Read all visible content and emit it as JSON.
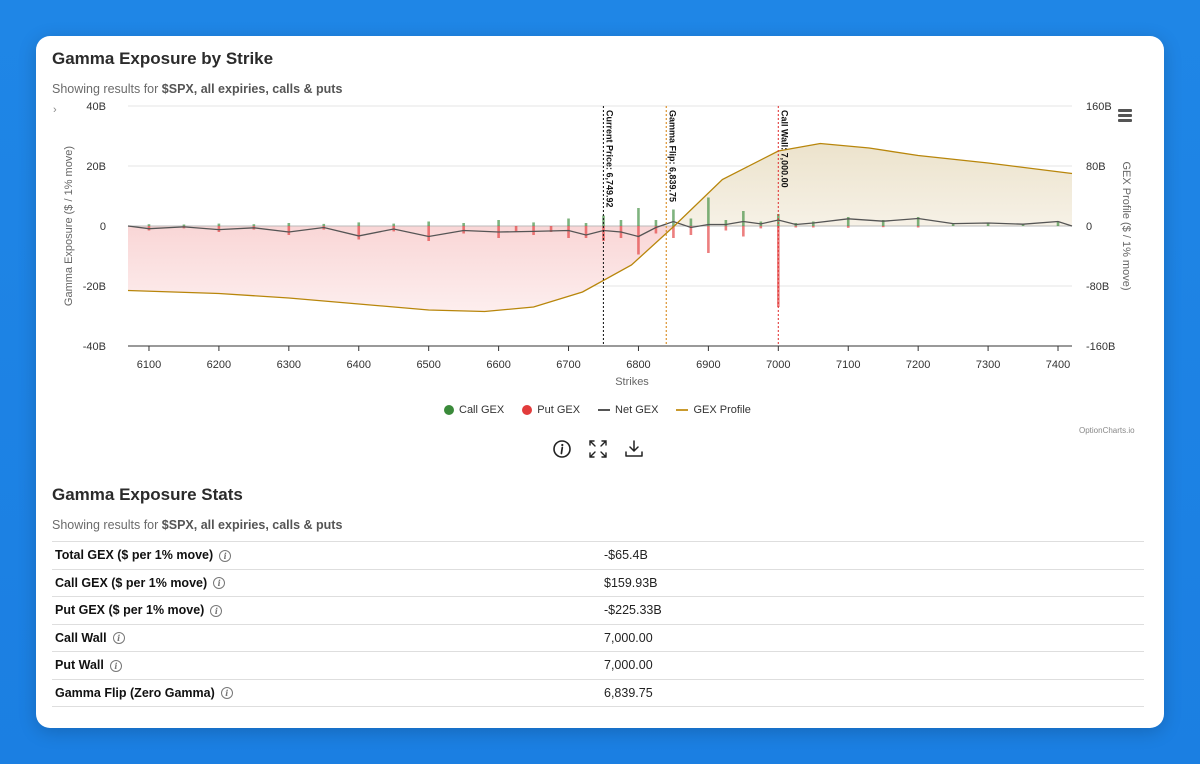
{
  "title": "Gamma Exposure by Strike",
  "subtitle": {
    "prefix": "Showing results for ",
    "bold": "$SPX, all expiries, calls & puts"
  },
  "chevron": "›",
  "chart_data": {
    "type": "bar",
    "xlabel": "Strikes",
    "ylabel_left": "Gamma Exposure ($ / 1% move)",
    "ylabel_right": "GEX Profile ($ / 1% move)",
    "xlim": [
      6070,
      7420
    ],
    "xticks": [
      6100,
      6200,
      6300,
      6400,
      6500,
      6600,
      6700,
      6800,
      6900,
      7000,
      7100,
      7200,
      7300,
      7400
    ],
    "ylim_left": [
      -40,
      40
    ],
    "yticks_left": [
      {
        "v": 40,
        "label": "40B"
      },
      {
        "v": 20,
        "label": "20B"
      },
      {
        "v": 0,
        "label": "0"
      },
      {
        "v": -20,
        "label": "-20B"
      },
      {
        "v": -40,
        "label": "-40B"
      }
    ],
    "ylim_right": [
      -160,
      160
    ],
    "yticks_right": [
      {
        "v": 160,
        "label": "160B"
      },
      {
        "v": 80,
        "label": "80B"
      },
      {
        "v": 0,
        "label": "0"
      },
      {
        "v": -80,
        "label": "-80B"
      },
      {
        "v": -160,
        "label": "-160B"
      }
    ],
    "grid": true,
    "legend_position": "bottom",
    "series": [
      {
        "name": "Call GEX",
        "color": "#3a8a3a",
        "style": "bar",
        "points": [
          [
            6100,
            0.6
          ],
          [
            6150,
            0.5
          ],
          [
            6200,
            0.8
          ],
          [
            6250,
            0.6
          ],
          [
            6300,
            1.0
          ],
          [
            6350,
            0.7
          ],
          [
            6400,
            1.2
          ],
          [
            6450,
            0.8
          ],
          [
            6500,
            1.5
          ],
          [
            6550,
            1.0
          ],
          [
            6600,
            2.0
          ],
          [
            6650,
            1.2
          ],
          [
            6700,
            2.5
          ],
          [
            6725,
            1.0
          ],
          [
            6750,
            3.5
          ],
          [
            6775,
            2.0
          ],
          [
            6800,
            6.0
          ],
          [
            6825,
            2.0
          ],
          [
            6850,
            5.5
          ],
          [
            6875,
            2.5
          ],
          [
            6900,
            9.5
          ],
          [
            6925,
            2.0
          ],
          [
            6950,
            5.0
          ],
          [
            6975,
            1.5
          ],
          [
            7000,
            4.0
          ],
          [
            7025,
            1.0
          ],
          [
            7050,
            1.5
          ],
          [
            7100,
            3.0
          ],
          [
            7150,
            2.0
          ],
          [
            7200,
            3.0
          ],
          [
            7250,
            0.8
          ],
          [
            7300,
            1.0
          ],
          [
            7350,
            0.6
          ],
          [
            7400,
            1.5
          ]
        ]
      },
      {
        "name": "Put GEX",
        "color": "#e23b3b",
        "style": "bar",
        "points": [
          [
            6100,
            -1.5
          ],
          [
            6150,
            -0.8
          ],
          [
            6200,
            -2.0
          ],
          [
            6250,
            -1.2
          ],
          [
            6300,
            -3.0
          ],
          [
            6350,
            -1.2
          ],
          [
            6400,
            -4.5
          ],
          [
            6450,
            -1.8
          ],
          [
            6500,
            -5.0
          ],
          [
            6550,
            -2.5
          ],
          [
            6600,
            -4.0
          ],
          [
            6625,
            -2.0
          ],
          [
            6650,
            -3.0
          ],
          [
            6675,
            -2.0
          ],
          [
            6700,
            -4.0
          ],
          [
            6725,
            -4.0
          ],
          [
            6750,
            -5.0
          ],
          [
            6775,
            -4.0
          ],
          [
            6800,
            -9.5
          ],
          [
            6825,
            -2.5
          ],
          [
            6850,
            -4.0
          ],
          [
            6875,
            -3.0
          ],
          [
            6900,
            -9.0
          ],
          [
            6925,
            -1.5
          ],
          [
            6950,
            -3.5
          ],
          [
            6975,
            -0.8
          ],
          [
            7000,
            -27.0
          ],
          [
            7025,
            -0.5
          ],
          [
            7050,
            -0.5
          ],
          [
            7100,
            -0.6
          ],
          [
            7150,
            -0.4
          ],
          [
            7200,
            -0.5
          ]
        ]
      },
      {
        "name": "Net GEX",
        "color": "#555555",
        "style": "line",
        "points": [
          [
            6070,
            0
          ],
          [
            6100,
            -0.9
          ],
          [
            6150,
            -0.3
          ],
          [
            6200,
            -1.2
          ],
          [
            6250,
            -0.6
          ],
          [
            6300,
            -2.0
          ],
          [
            6350,
            -0.5
          ],
          [
            6400,
            -3.3
          ],
          [
            6450,
            -1.0
          ],
          [
            6500,
            -3.5
          ],
          [
            6550,
            -1.5
          ],
          [
            6600,
            -2.0
          ],
          [
            6650,
            -1.8
          ],
          [
            6700,
            -1.5
          ],
          [
            6725,
            -3.0
          ],
          [
            6750,
            -1.5
          ],
          [
            6775,
            -2.0
          ],
          [
            6800,
            -3.5
          ],
          [
            6825,
            -0.5
          ],
          [
            6850,
            1.5
          ],
          [
            6875,
            -0.5
          ],
          [
            6900,
            0.5
          ],
          [
            6925,
            0.5
          ],
          [
            6950,
            1.5
          ],
          [
            6975,
            0.7
          ],
          [
            7000,
            2.0
          ],
          [
            7025,
            0.5
          ],
          [
            7050,
            1.0
          ],
          [
            7100,
            2.4
          ],
          [
            7150,
            1.6
          ],
          [
            7200,
            2.5
          ],
          [
            7250,
            0.8
          ],
          [
            7300,
            1.0
          ],
          [
            7350,
            0.6
          ],
          [
            7400,
            1.5
          ],
          [
            7420,
            0
          ]
        ]
      },
      {
        "name": "GEX Profile",
        "color": "#b8860b",
        "style": "area",
        "axis": "right",
        "points": [
          [
            6070,
            -86
          ],
          [
            6200,
            -90
          ],
          [
            6300,
            -96
          ],
          [
            6400,
            -104
          ],
          [
            6500,
            -112
          ],
          [
            6580,
            -114
          ],
          [
            6650,
            -108
          ],
          [
            6720,
            -88
          ],
          [
            6790,
            -52
          ],
          [
            6850,
            -1
          ],
          [
            6920,
            62
          ],
          [
            7000,
            100
          ],
          [
            7060,
            110
          ],
          [
            7130,
            104
          ],
          [
            7200,
            94
          ],
          [
            7300,
            84
          ],
          [
            7420,
            70
          ]
        ]
      }
    ],
    "annotations": [
      {
        "x": 6749.92,
        "label": "Current Price: 6,749.92",
        "color": "#222222"
      },
      {
        "x": 6839.75,
        "label": "Gamma Flip: 6,839.75",
        "color": "#d98a1c"
      },
      {
        "x": 7000,
        "label": "Call Wall: 7,000.00",
        "color": "#e23b3b"
      }
    ]
  },
  "legend": [
    {
      "name": "Call GEX",
      "kind": "dot",
      "color": "#3a8a3a"
    },
    {
      "name": "Put GEX",
      "kind": "dot",
      "color": "#e23b3b"
    },
    {
      "name": "Net GEX",
      "kind": "line",
      "color": "#555555"
    },
    {
      "name": "GEX Profile",
      "kind": "line",
      "color": "#c99a2e"
    }
  ],
  "credit": "OptionCharts.io",
  "tools": {
    "info_icon": "info-icon",
    "fullscreen_icon": "fullscreen-icon",
    "download_icon": "download-icon",
    "menu_icon": "hamburger-menu-icon"
  },
  "stats": {
    "title": "Gamma Exposure Stats",
    "subtitle": {
      "prefix": "Showing results for ",
      "bold": "$SPX, all expiries, calls & puts"
    },
    "rows": [
      {
        "label": "Total GEX ($ per 1% move)",
        "value": "-$65.4B"
      },
      {
        "label": "Call GEX ($ per 1% move)",
        "value": "$159.93B"
      },
      {
        "label": "Put GEX ($ per 1% move)",
        "value": "-$225.33B"
      },
      {
        "label": "Call Wall",
        "value": "7,000.00"
      },
      {
        "label": "Put Wall",
        "value": "7,000.00"
      },
      {
        "label": "Gamma Flip (Zero Gamma)",
        "value": "6,839.75"
      }
    ]
  }
}
